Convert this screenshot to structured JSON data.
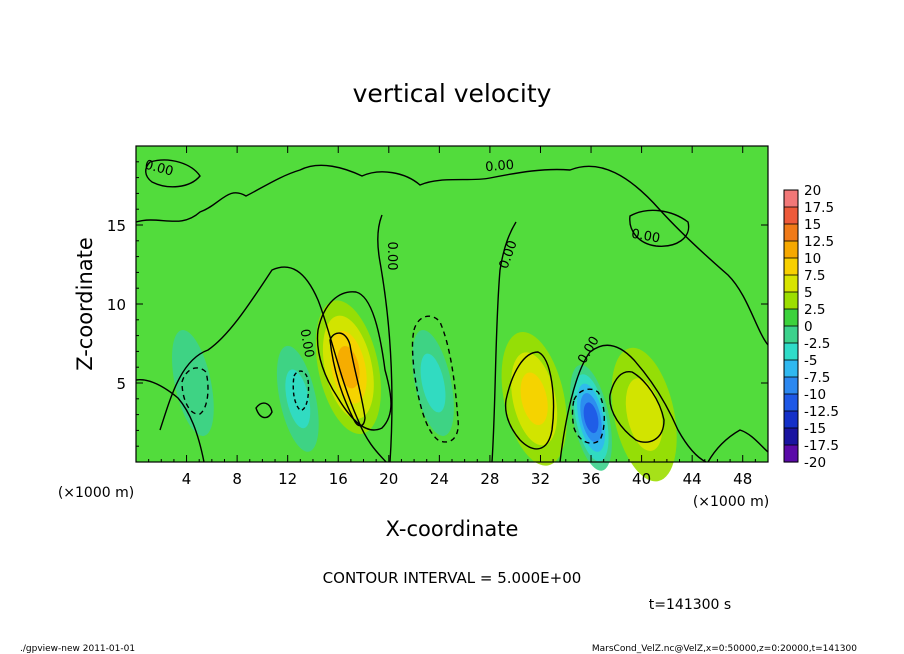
{
  "chart_data": {
    "type": "heatmap",
    "title": "vertical velocity",
    "xlabel": "X-coordinate",
    "ylabel": "Z-coordinate",
    "x_unit_left": "(×1000 m)",
    "x_unit_right": "(×1000 m)",
    "y_unit_left": "(×1000 m)",
    "xlim": [
      0,
      50
    ],
    "ylim": [
      0,
      20
    ],
    "x_ticks": [
      "4",
      "8",
      "12",
      "16",
      "20",
      "24",
      "28",
      "32",
      "36",
      "40",
      "44",
      "48"
    ],
    "x_tick_values": [
      4,
      8,
      12,
      16,
      20,
      24,
      28,
      32,
      36,
      40,
      44,
      48
    ],
    "y_ticks": [
      "5",
      "10",
      "15"
    ],
    "y_tick_values": [
      5,
      10,
      15
    ],
    "contour_interval_text": "CONTOUR INTERVAL = 5.000E+00",
    "time_text": "t=141300 s",
    "contour_labels": [
      "0.00",
      "0.00",
      "0.00",
      "0.00",
      "0.00",
      "0.00",
      "0.00"
    ],
    "colorbar": {
      "labels": [
        "20",
        "17.5",
        "15",
        "12.5",
        "10",
        "7.5",
        "5",
        "2.5",
        "0",
        "-2.5",
        "-5",
        "-7.5",
        "-10",
        "-12.5",
        "-15",
        "-17.5",
        "-20"
      ],
      "colors": [
        "#f49a9a",
        "#f27878",
        "#ee5a3a",
        "#f07a18",
        "#f6a800",
        "#f8d000",
        "#d8e400",
        "#9cde00",
        "#3cd23c",
        "#3cd28c",
        "#30dcc8",
        "#30b8f0",
        "#2c88f0",
        "#1e58e6",
        "#1430c8",
        "#1a14a0",
        "#5a0aa8"
      ]
    },
    "features": [
      {
        "kind": "updraft",
        "x": 16.8,
        "z": 6.0,
        "peak": 11
      },
      {
        "kind": "updraft",
        "x": 31.5,
        "z": 4.0,
        "peak": 8
      },
      {
        "kind": "updraft",
        "x": 40.2,
        "z": 3.0,
        "peak": 6
      },
      {
        "kind": "downdraft",
        "x": 36.0,
        "z": 2.8,
        "peak": -13
      },
      {
        "kind": "downdraft",
        "x": 23.5,
        "z": 5.0,
        "peak": -5
      },
      {
        "kind": "downdraft",
        "x": 12.8,
        "z": 4.0,
        "peak": -4
      },
      {
        "kind": "downdraft",
        "x": 4.5,
        "z": 5.0,
        "peak": -3
      }
    ]
  },
  "footer": {
    "left": "./gpview-new  2011-01-01",
    "right": "MarsCond_VelZ.nc@VelZ,x=0:50000,z=0:20000,t=141300"
  }
}
